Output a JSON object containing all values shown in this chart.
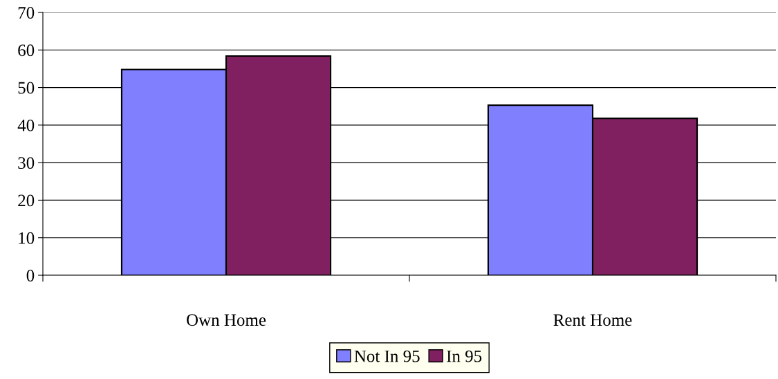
{
  "chart_data": {
    "type": "bar",
    "categories": [
      "Own Home",
      "Rent Home"
    ],
    "series": [
      {
        "name": "Not In 95",
        "color": "#8080ff",
        "values": [
          54.8,
          45.3
        ]
      },
      {
        "name": "In 95",
        "color": "#802060",
        "values": [
          58.4,
          41.8
        ]
      }
    ],
    "ylim": [
      0,
      70
    ],
    "yticks": [
      0,
      10,
      20,
      30,
      40,
      50,
      60,
      70
    ],
    "grid": "y",
    "legend": "bottom"
  }
}
